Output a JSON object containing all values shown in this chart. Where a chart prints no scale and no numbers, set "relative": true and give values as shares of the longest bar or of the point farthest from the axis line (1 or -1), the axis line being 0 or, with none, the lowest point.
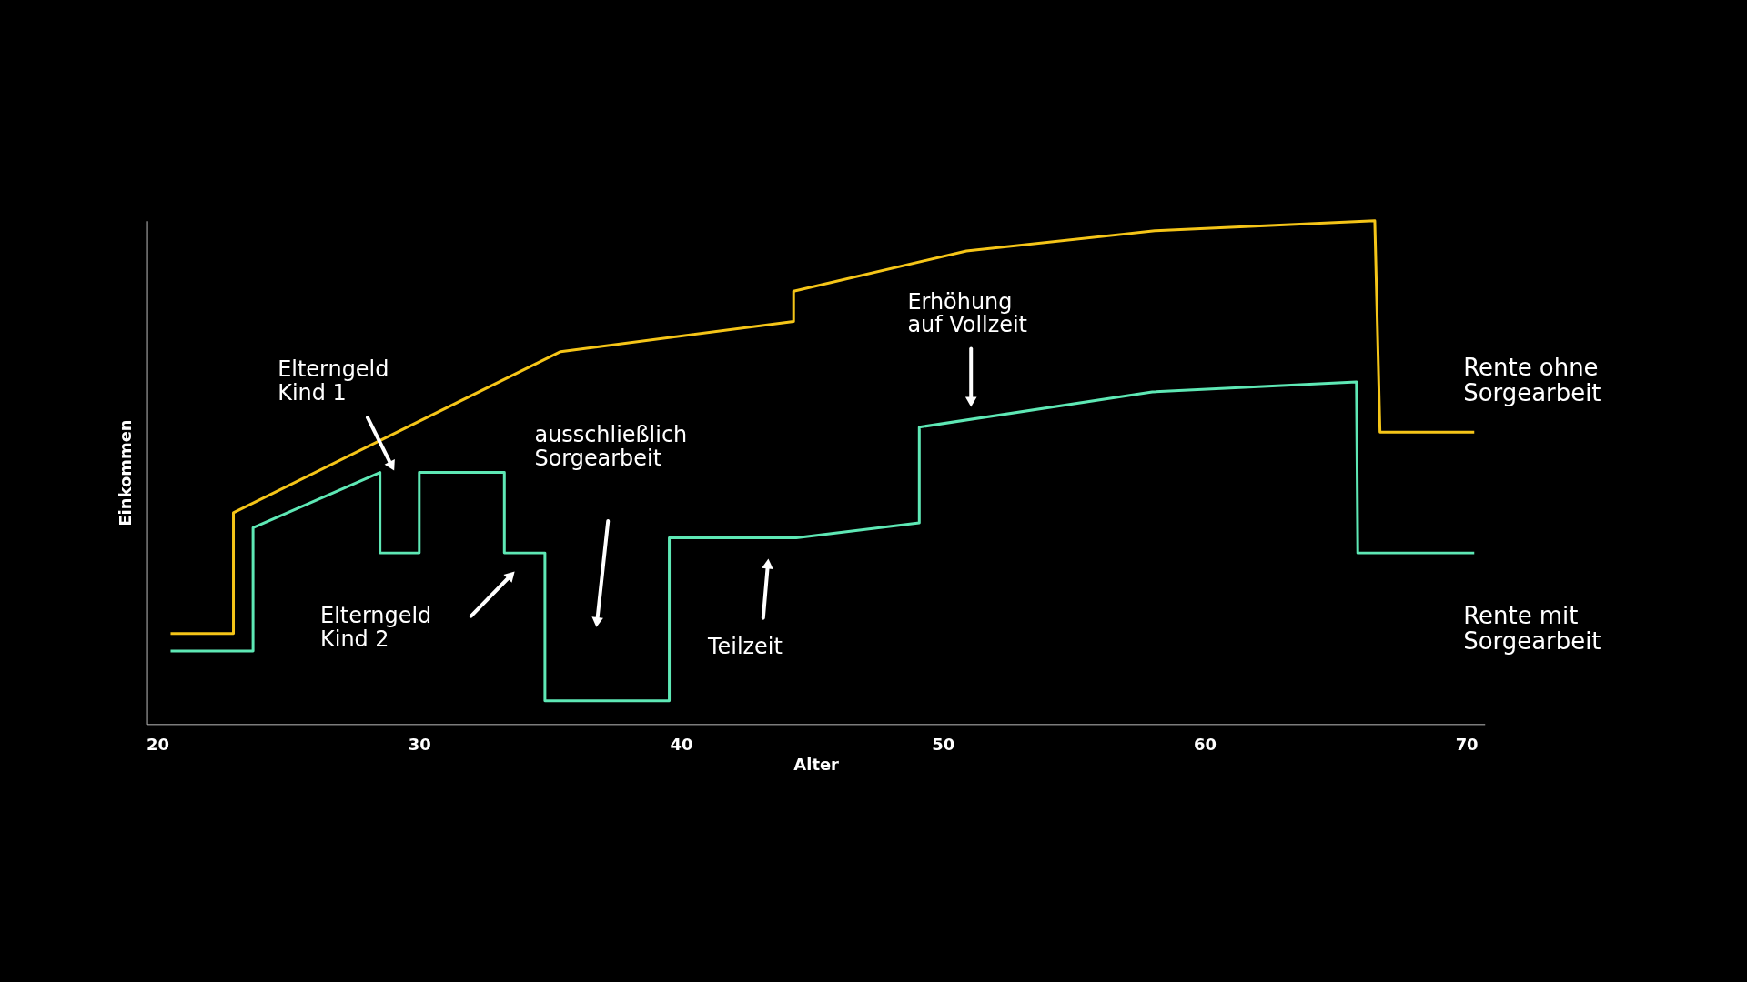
{
  "chart_data": {
    "type": "line",
    "relative": true,
    "xlabel": "Alter",
    "ylabel": "Einkommen",
    "xlim": [
      19.6,
      70.7
    ],
    "xticks": [
      20,
      30,
      40,
      50,
      60,
      70
    ],
    "series": [
      {
        "name": "Rente ohne\nSorgearbeit",
        "color": "#f5c518",
        "x": [
          20.5,
          22.9,
          22.9,
          35.4,
          44.3,
          44.3,
          50.9,
          58.1,
          66.5,
          66.7,
          70.3
        ],
        "values": [
          0.18,
          0.18,
          0.42,
          0.74,
          0.8,
          0.86,
          0.94,
          0.98,
          1.0,
          0.58,
          0.58
        ]
      },
      {
        "name": "Rente mit\nSorgearbeit",
        "color": "#5ee8b5",
        "x": [
          20.5,
          23.65,
          23.65,
          28.5,
          28.5,
          30.0,
          30.0,
          33.25,
          33.25,
          34.8,
          34.8,
          39.55,
          39.55,
          44.4,
          49.1,
          49.1,
          58.0,
          65.8,
          65.85,
          70.3
        ],
        "values": [
          0.145,
          0.145,
          0.39,
          0.5,
          0.34,
          0.34,
          0.5,
          0.5,
          0.34,
          0.34,
          0.046,
          0.046,
          0.37,
          0.37,
          0.4,
          0.59,
          0.66,
          0.68,
          0.34,
          0.34
        ]
      }
    ],
    "annotations": [
      "Elterngeld\nKind 1",
      "Elterngeld\nKind 2",
      "ausschließlich\nSorgearbeit",
      "Teilzeit",
      "Erhöhung\nauf Vollzeit"
    ]
  }
}
